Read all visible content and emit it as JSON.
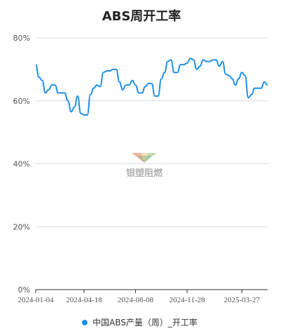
{
  "chart_data": {
    "type": "line",
    "title": "ABS周开工率",
    "ylim": [
      0,
      80
    ],
    "y_ticks": [
      "0%",
      "20%",
      "40%",
      "60%",
      "80%"
    ],
    "y_tick_values": [
      0,
      20,
      40,
      60,
      80
    ],
    "x_tick_labels": [
      "2024-01-04",
      "2024-04-18",
      "2024-08-08",
      "2024-11-28",
      "2025-03-27"
    ],
    "grid": true,
    "legend_position": "bottom-center",
    "series": [
      {
        "name": "中国ABS产量（周）_开工率",
        "color": "#1e8fe8",
        "values": [
          71.5,
          67.5,
          66.5,
          62.5,
          63.5,
          65,
          65,
          62.5,
          62.5,
          62.5,
          60,
          56.5,
          58,
          61.5,
          56,
          55.5,
          55.5,
          62,
          64,
          65,
          64.5,
          69,
          69.5,
          69.5,
          70,
          70,
          66,
          63.5,
          65,
          65,
          66.5,
          65,
          62.5,
          62.5,
          64.5,
          65.5,
          65.5,
          61.5,
          61.5,
          67,
          69,
          72.5,
          73,
          69,
          69,
          71.5,
          71.5,
          72,
          73.5,
          73,
          70,
          71,
          73,
          72.5,
          72.5,
          73,
          73,
          71,
          72.5,
          68.5,
          68,
          67,
          65,
          67,
          69,
          68,
          61,
          62,
          64,
          64,
          64,
          66,
          65
        ]
      }
    ]
  },
  "watermark": {
    "brand": "银塑阻燃"
  }
}
